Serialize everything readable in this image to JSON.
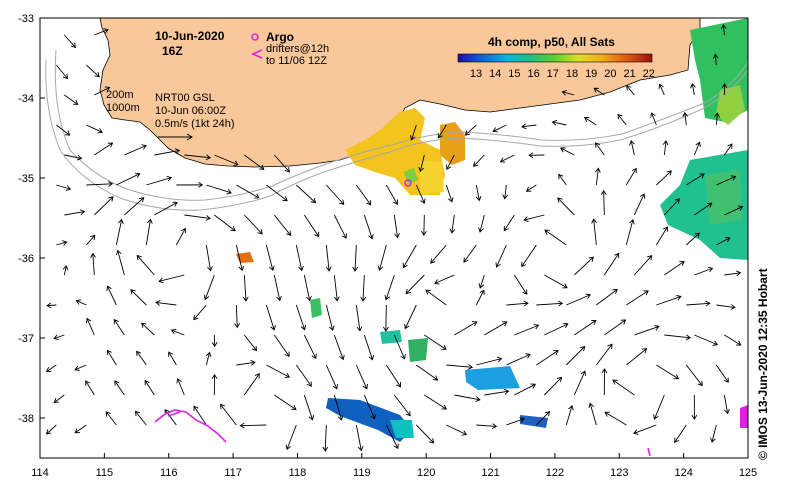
{
  "map": {
    "title_date": "10-Jun-2020",
    "title_time": "16Z",
    "legend_argo": "Argo",
    "legend_drifters_line1": "drifters@12h",
    "legend_drifters_line2": "to 11/06 12Z",
    "contour_200": "200m",
    "contour_1000": "1000m",
    "product": "NRT00 GSL",
    "product_time": "10-Jun 06:00Z",
    "scale_label": "0.5m/s (1kt 24h)",
    "colorbar_title": "4h comp, p50, All Sats",
    "colorbar_ticks": [
      "13",
      "14",
      "15",
      "16",
      "17",
      "18",
      "19",
      "20",
      "21",
      "22"
    ],
    "copyright": "© IMOS 13-Jun-2020 12:35 Hobart",
    "colors": {
      "land": "#f9c89a",
      "argo": "#e020e0",
      "drifter": "#e020e0"
    },
    "x_ticks": [
      "114",
      "115",
      "116",
      "117",
      "118",
      "119",
      "120",
      "121",
      "122",
      "123",
      "124",
      "125"
    ],
    "y_ticks": [
      "-33",
      "-34",
      "-35",
      "-36",
      "-37",
      "-38"
    ]
  }
}
